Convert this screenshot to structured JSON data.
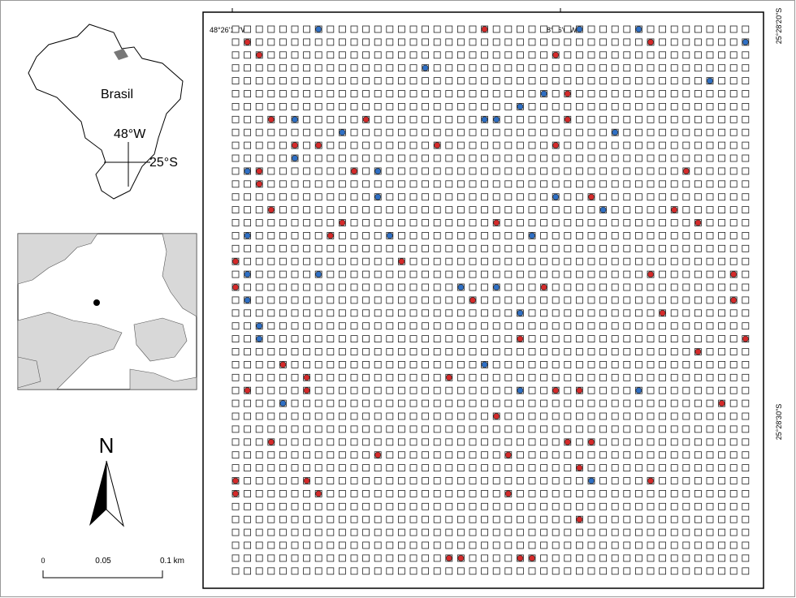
{
  "locator": {
    "country": "Brasil",
    "longitude": "48°W",
    "latitude": "25°S"
  },
  "north_arrow": "N",
  "scale_bar": {
    "labels": [
      "0",
      "0.05",
      "0.1 km"
    ]
  },
  "grid_labels": {
    "top": [
      "48°26'10\"W",
      "48°26'0\"W"
    ],
    "right": [
      "25°28'20\"S",
      "25°28'30\"S"
    ]
  }
}
